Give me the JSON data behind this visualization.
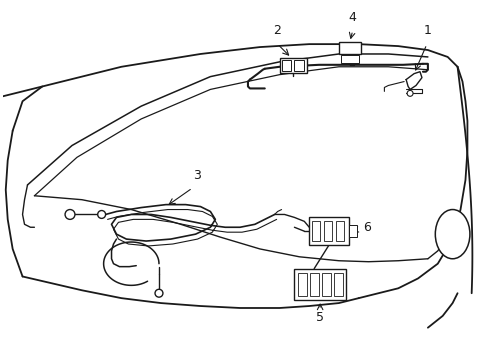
{
  "background_color": "#ffffff",
  "line_color": "#1a1a1a",
  "line_width": 1.0,
  "label_fontsize": 9,
  "components": {
    "windshield_outer": {
      "x": [
        0.52,
        0.13,
        0.05,
        0.48,
        0.85,
        0.91
      ],
      "y": [
        0.93,
        0.93,
        0.3,
        0.08,
        0.18,
        0.55
      ]
    }
  }
}
